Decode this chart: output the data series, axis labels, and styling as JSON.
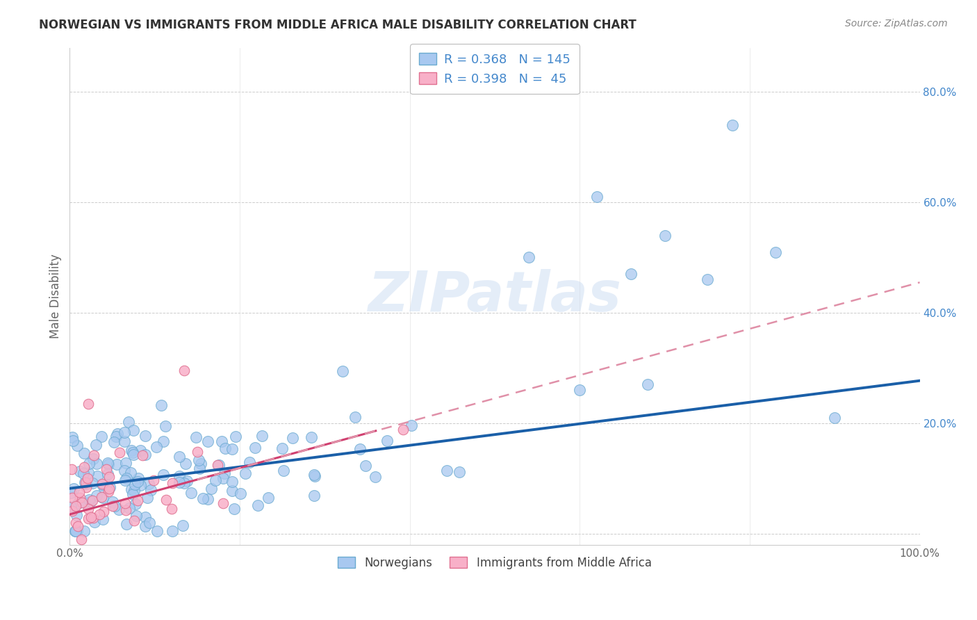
{
  "title": "NORWEGIAN VS IMMIGRANTS FROM MIDDLE AFRICA MALE DISABILITY CORRELATION CHART",
  "source": "Source: ZipAtlas.com",
  "ylabel": "Male Disability",
  "xlim": [
    0.0,
    1.0
  ],
  "ylim": [
    -0.02,
    0.88
  ],
  "yticks": [
    0.0,
    0.2,
    0.4,
    0.6,
    0.8
  ],
  "xticks": [
    0.0,
    0.2,
    0.4,
    0.6,
    0.8,
    1.0
  ],
  "xtick_labels": [
    "0.0%",
    "",
    "",
    "",
    "",
    "100.0%"
  ],
  "norwegian_color": "#a8c8f0",
  "norwegian_edge": "#6aaad0",
  "immigrant_color": "#f8b0c8",
  "immigrant_edge": "#e07090",
  "trend_norwegian_color": "#1a5fa8",
  "trend_immigrant_color_solid": "#d04070",
  "trend_immigrant_color_dash": "#e090a8",
  "R_norwegian": 0.368,
  "N_norwegian": 145,
  "R_immigrant": 0.398,
  "N_immigrant": 45,
  "background_color": "#ffffff",
  "grid_color": "#cccccc",
  "watermark": "ZIPatlas",
  "legend_bottom_labels": [
    "Norwegians",
    "Immigrants from Middle Africa"
  ],
  "ytick_color": "#4488cc",
  "title_color": "#333333",
  "source_color": "#888888"
}
